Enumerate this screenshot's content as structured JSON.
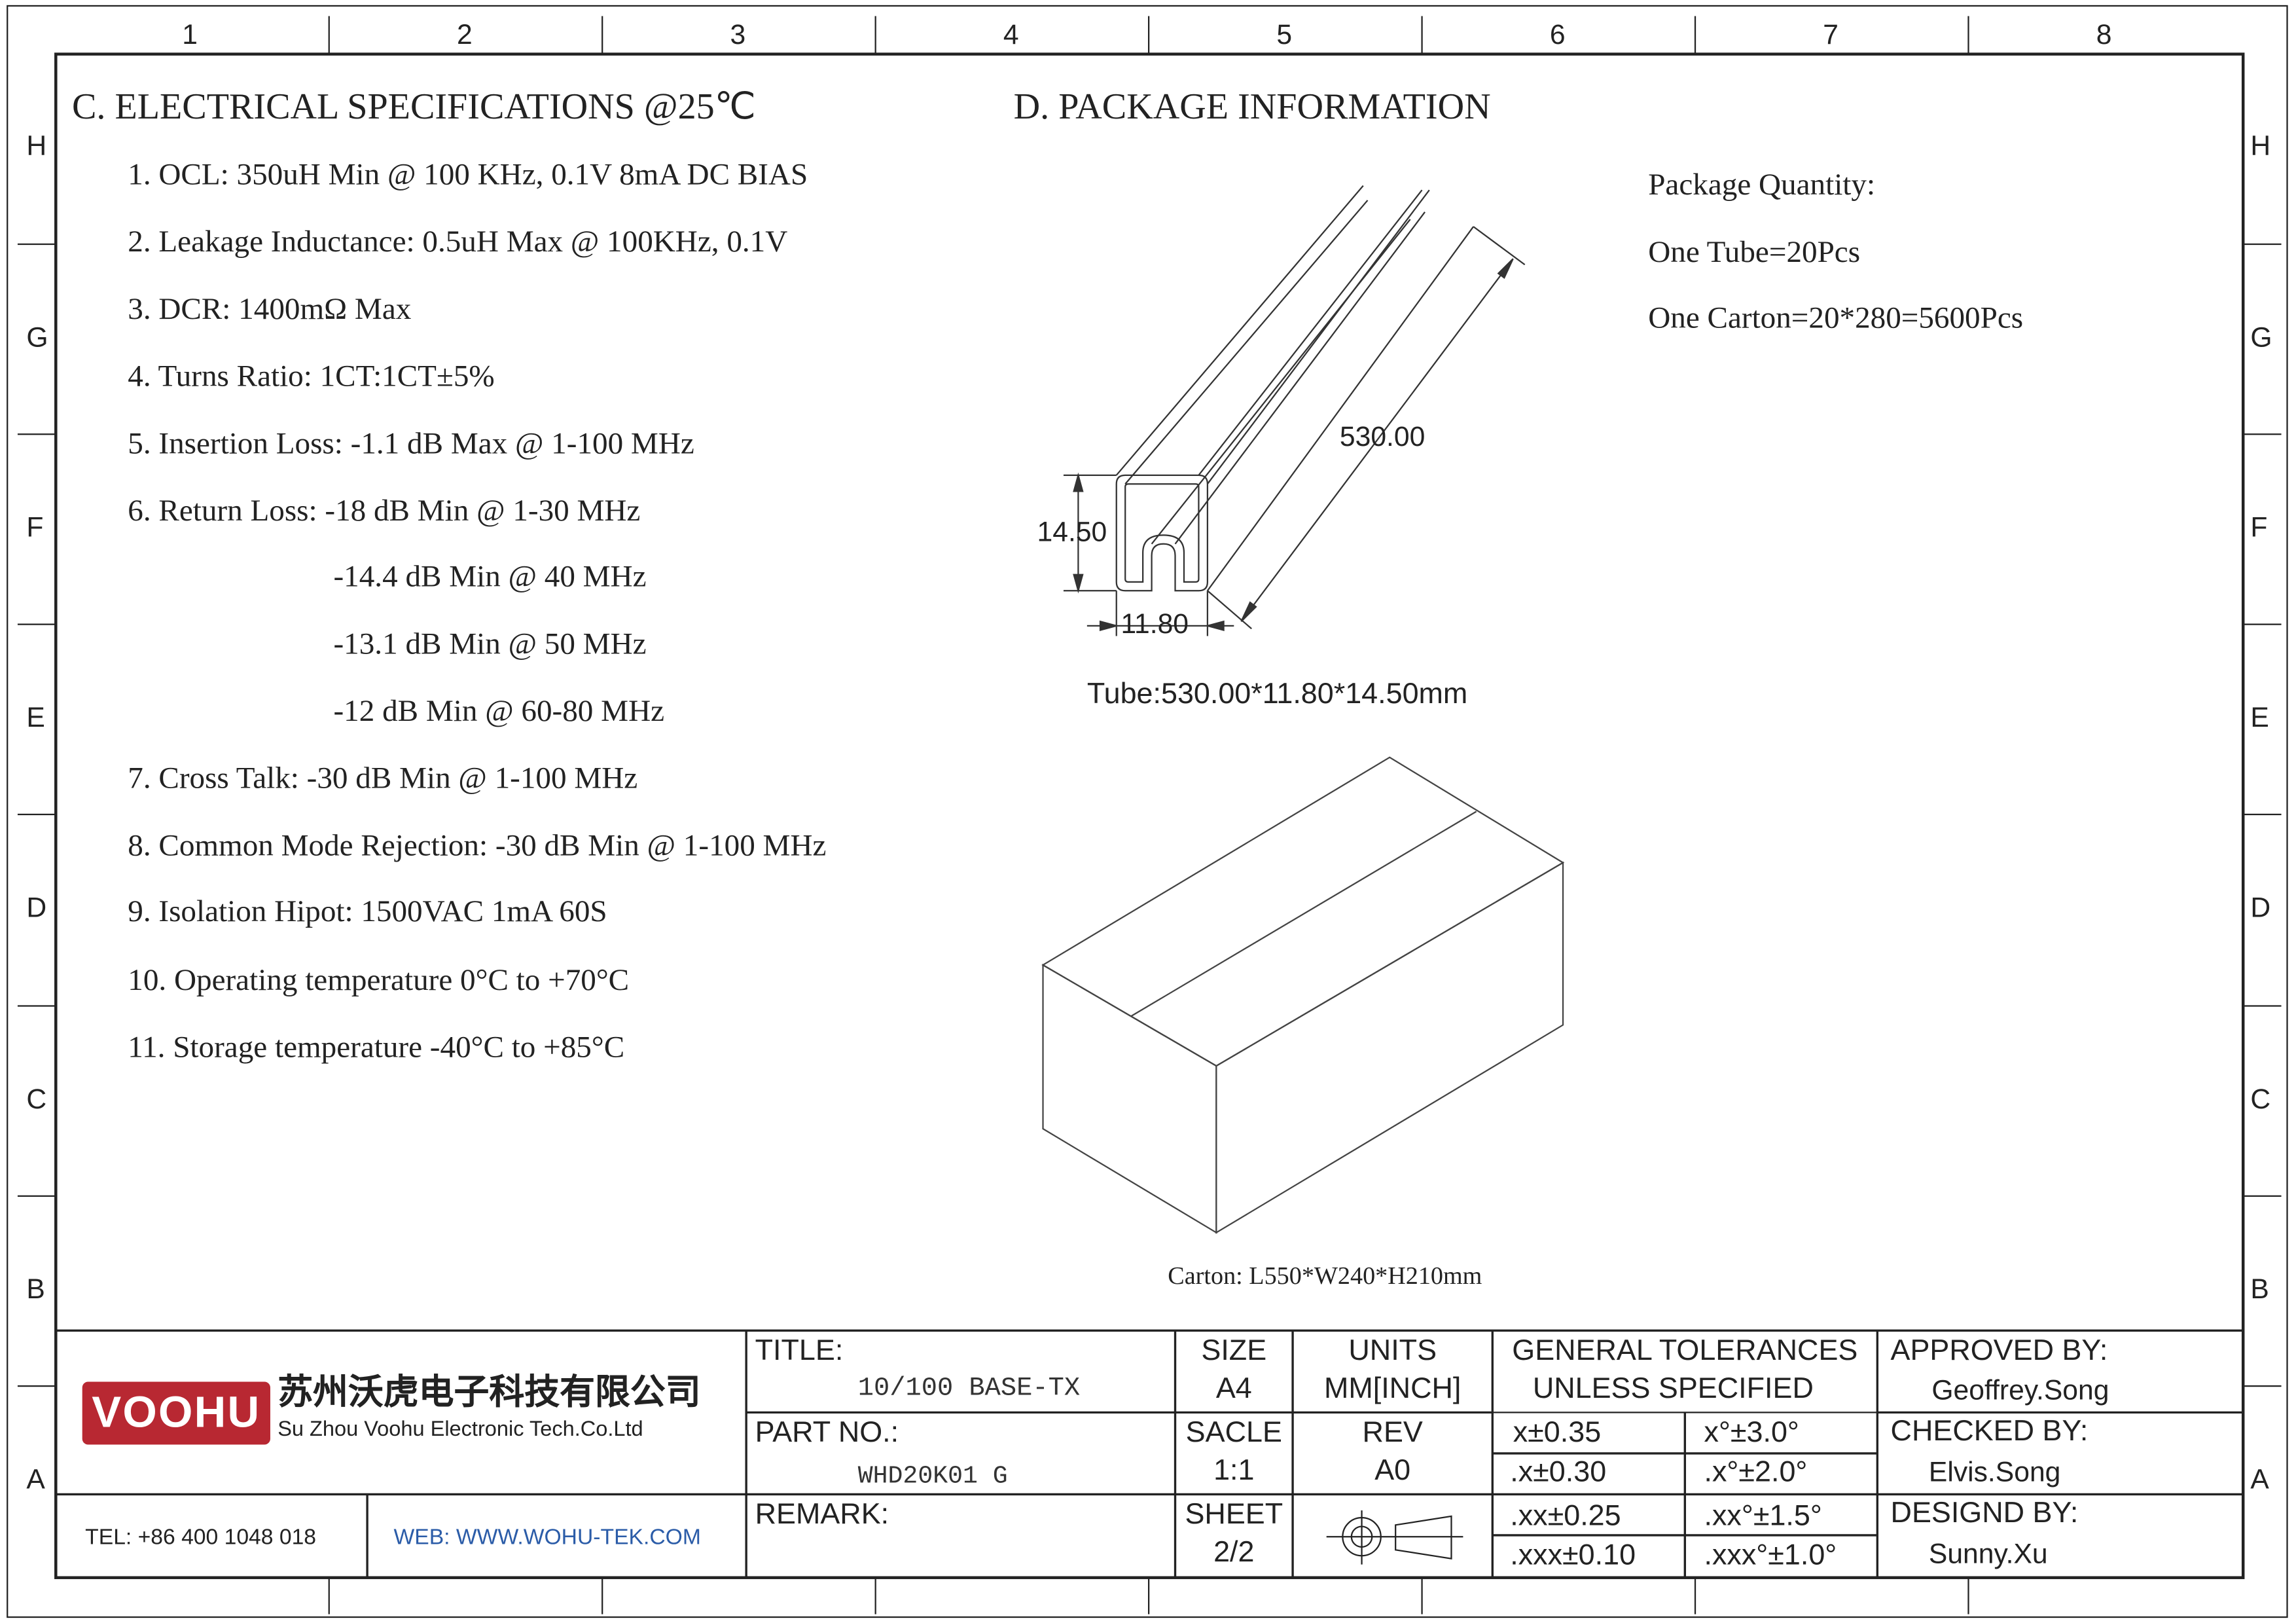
{
  "zones": {
    "columns": [
      "1",
      "2",
      "3",
      "4",
      "5",
      "6",
      "7",
      "8"
    ],
    "rows": [
      "H",
      "G",
      "F",
      "E",
      "D",
      "C",
      "B",
      "A"
    ]
  },
  "electrical": {
    "heading": "C. ELECTRICAL SPECIFICATIONS @25℃",
    "items": [
      "1. OCL: 350uH Min @ 100 KHz, 0.1V  8mA DC BIAS",
      "2. Leakage Inductance: 0.5uH Max @ 100KHz, 0.1V",
      "3. DCR: 1400mΩ Max",
      "4. Turns Ratio: 1CT:1CT±5%",
      "5. Insertion Loss: -1.1 dB Max @ 1-100 MHz",
      "6. Return Loss: -18 dB Min @ 1-30 MHz",
      "-14.4 dB Min @ 40 MHz",
      "-13.1 dB Min @ 50 MHz",
      "-12 dB Min @ 60-80 MHz",
      "7. Cross Talk: -30 dB Min @ 1-100 MHz",
      "8. Common Mode Rejection: -30 dB Min @ 1-100 MHz",
      "9. Isolation Hipot: 1500VAC 1mA 60S",
      "10. Operating temperature 0°C to +70°C",
      "11. Storage temperature -40°C to +85°C"
    ]
  },
  "package": {
    "heading": "D. PACKAGE INFORMATION",
    "quantity_label": "Package Quantity:",
    "tube_qty": "One Tube=20Pcs",
    "carton_qty": "One Carton=20*280=5600Pcs",
    "dim_length": "530.00",
    "dim_height": "14.50",
    "dim_width": "11.80",
    "tube_caption": "Tube:530.00*11.80*14.50mm",
    "carton_caption": "Carton: L550*W240*H210mm"
  },
  "title_block": {
    "logo_text": "VOOHU",
    "company_cn": "苏州沃虎电子科技有限公司",
    "company_en": "Su Zhou Voohu Electronic Tech.Co.Ltd",
    "tel": "TEL: +86 400 1048 018",
    "web": "WEB: WWW.WOHU-TEK.COM",
    "title_label": "TITLE:",
    "title_value": "10/100 BASE-TX",
    "part_label": "PART NO.:",
    "part_value": "WHD20K01 G",
    "remark_label": "REMARK:",
    "size_label": "SIZE",
    "size_value": "A4",
    "scale_label": "SACLE",
    "scale_value": "1:1",
    "sheet_label": "SHEET",
    "sheet_value": "2/2",
    "units_label": "UNITS",
    "units_value": "MM[INCH]",
    "rev_label": "REV",
    "rev_value": "A0",
    "tol_line1": "GENERAL TOLERANCES",
    "tol_line2": "UNLESS SPECIFIED",
    "tolerances": [
      [
        "x±0.35",
        "x°±3.0°"
      ],
      [
        ".x±0.30",
        ".x°±2.0°"
      ],
      [
        ".xx±0.25",
        ".xx°±1.5°"
      ],
      [
        ".xxx±0.10",
        ".xxx°±1.0°"
      ]
    ],
    "approved_label": "APPROVED BY:",
    "approved_value": "Geoffrey.Song",
    "checked_label": "CHECKED BY:",
    "checked_value": "Elvis.Song",
    "designed_label": "DESIGND BY:",
    "designed_value": "Sunny.Xu"
  },
  "colors": {
    "logo_red": "#b82832",
    "web_blue": "#2b5ca8",
    "line": "#222222"
  }
}
